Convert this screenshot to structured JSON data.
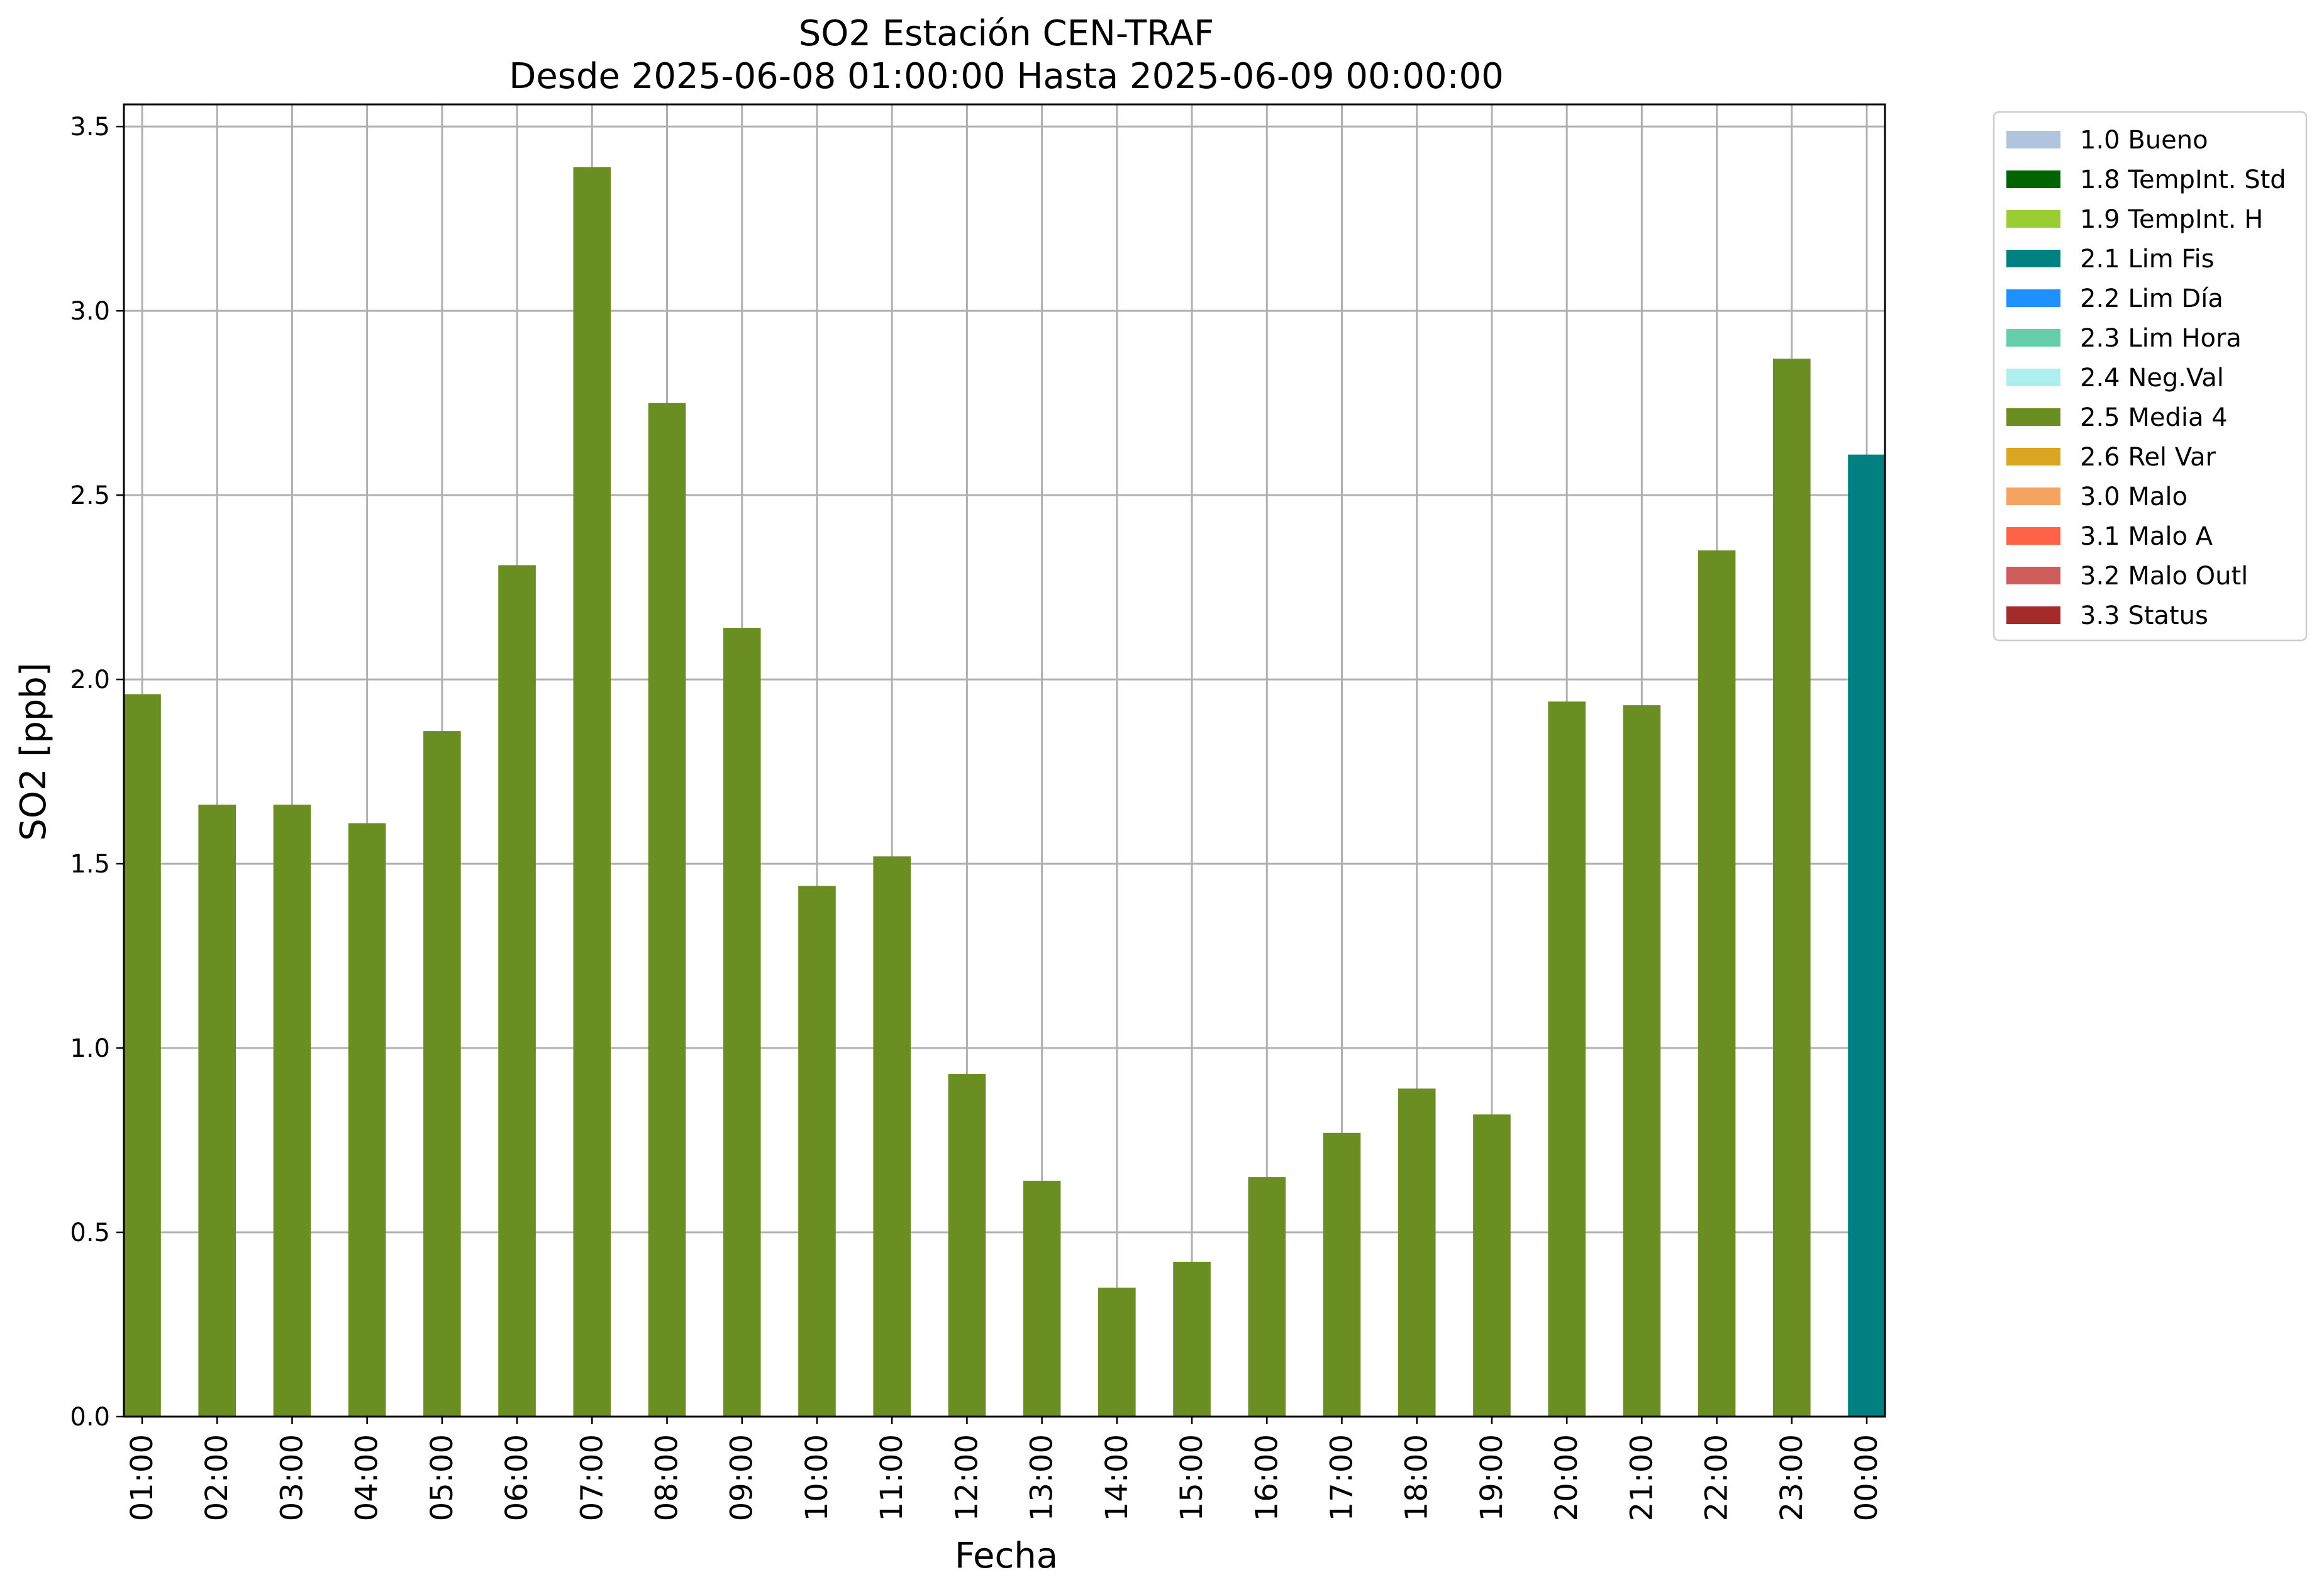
{
  "chart_data": {
    "type": "bar",
    "title": "SO2 Estación CEN-TRAF",
    "subtitle": "Desde 2025-06-08 01:00:00 Hasta 2025-06-09 00:00:00",
    "xlabel": "Fecha",
    "ylabel": "SO2 [ppb]",
    "ylim": [
      0,
      3.56
    ],
    "yticks": [
      "0.0",
      "0.5",
      "1.0",
      "1.5",
      "2.0",
      "2.5",
      "3.0",
      "3.5"
    ],
    "grid": true,
    "legend_position": "outside-top-right",
    "categories": [
      "01:00",
      "02:00",
      "03:00",
      "04:00",
      "05:00",
      "06:00",
      "07:00",
      "08:00",
      "09:00",
      "10:00",
      "11:00",
      "12:00",
      "13:00",
      "14:00",
      "15:00",
      "16:00",
      "17:00",
      "18:00",
      "19:00",
      "20:00",
      "21:00",
      "22:00",
      "23:00",
      "00:00"
    ],
    "values": [
      1.96,
      1.66,
      1.66,
      1.61,
      1.86,
      2.31,
      3.39,
      2.75,
      2.14,
      1.44,
      1.52,
      0.93,
      0.64,
      0.35,
      0.42,
      0.65,
      0.77,
      0.89,
      0.82,
      1.94,
      1.93,
      2.35,
      2.87,
      2.61
    ],
    "flags": [
      "2.5 Media 4",
      "2.5 Media 4",
      "2.5 Media 4",
      "2.5 Media 4",
      "2.5 Media 4",
      "2.5 Media 4",
      "2.5 Media 4",
      "2.5 Media 4",
      "2.5 Media 4",
      "2.5 Media 4",
      "2.5 Media 4",
      "2.5 Media 4",
      "2.5 Media 4",
      "2.5 Media 4",
      "2.5 Media 4",
      "2.5 Media 4",
      "2.5 Media 4",
      "2.5 Media 4",
      "2.5 Media 4",
      "2.5 Media 4",
      "2.5 Media 4",
      "2.5 Media 4",
      "2.5 Media 4",
      "2.1 Lim Fis"
    ],
    "legend": [
      {
        "label": "1.0 Bueno",
        "color": "#b0c4de"
      },
      {
        "label": "1.8 TempInt. Std",
        "color": "#006400"
      },
      {
        "label": "1.9 TempInt. H",
        "color": "#9acd32"
      },
      {
        "label": "2.1 Lim Fis",
        "color": "#008080"
      },
      {
        "label": "2.2 Lim Día",
        "color": "#1e90ff"
      },
      {
        "label": "2.3 Lim Hora",
        "color": "#66cdaa"
      },
      {
        "label": "2.4 Neg.Val",
        "color": "#afeeee"
      },
      {
        "label": "2.5 Media 4",
        "color": "#6b8e23"
      },
      {
        "label": "2.6 Rel Var",
        "color": "#daa520"
      },
      {
        "label": "3.0 Malo",
        "color": "#f4a460"
      },
      {
        "label": "3.1 Malo A",
        "color": "#ff6347"
      },
      {
        "label": "3.2 Malo Outl",
        "color": "#cd5c5c"
      },
      {
        "label": "3.3 Status",
        "color": "#a52a2a"
      }
    ]
  }
}
